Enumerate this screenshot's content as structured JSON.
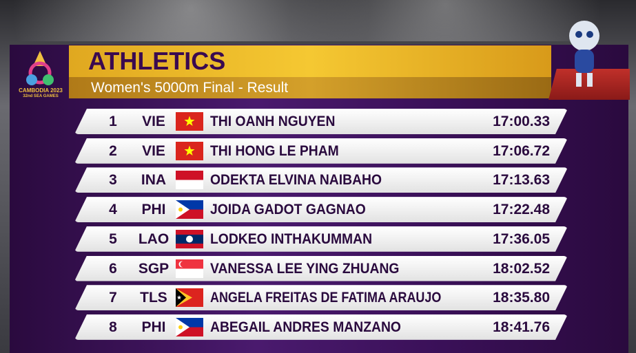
{
  "header": {
    "title": "ATHLETICS",
    "subtitle": "Women's 5000m Final - Result"
  },
  "logo": {
    "line1": "CAMBODIA 2023",
    "line2": "32nd SEA GAMES"
  },
  "table": {
    "rows": [
      [
        "1",
        "VIE",
        "THI OANH NGUYEN",
        "17:00.33"
      ],
      [
        "2",
        "VIE",
        "THI HONG LE PHAM",
        "17:06.72"
      ],
      [
        "3",
        "INA",
        "ODEKTA ELVINA NAIBAHO",
        "17:13.63"
      ],
      [
        "4",
        "PHI",
        "JOIDA GADOT GAGNAO",
        "17:22.48"
      ],
      [
        "5",
        "LAO",
        "LODKEO INTHAKUMMAN",
        "17:36.05"
      ],
      [
        "6",
        "SGP",
        "VANESSA LEE YING ZHUANG",
        "18:02.52"
      ],
      [
        "7",
        "TLS",
        "ANGELA FREITAS DE FATIMA ARAUJO",
        "18:35.80"
      ],
      [
        "8",
        "PHI",
        "ABEGAIL ANDRES MANZANO",
        "18:41.76"
      ]
    ]
  }
}
